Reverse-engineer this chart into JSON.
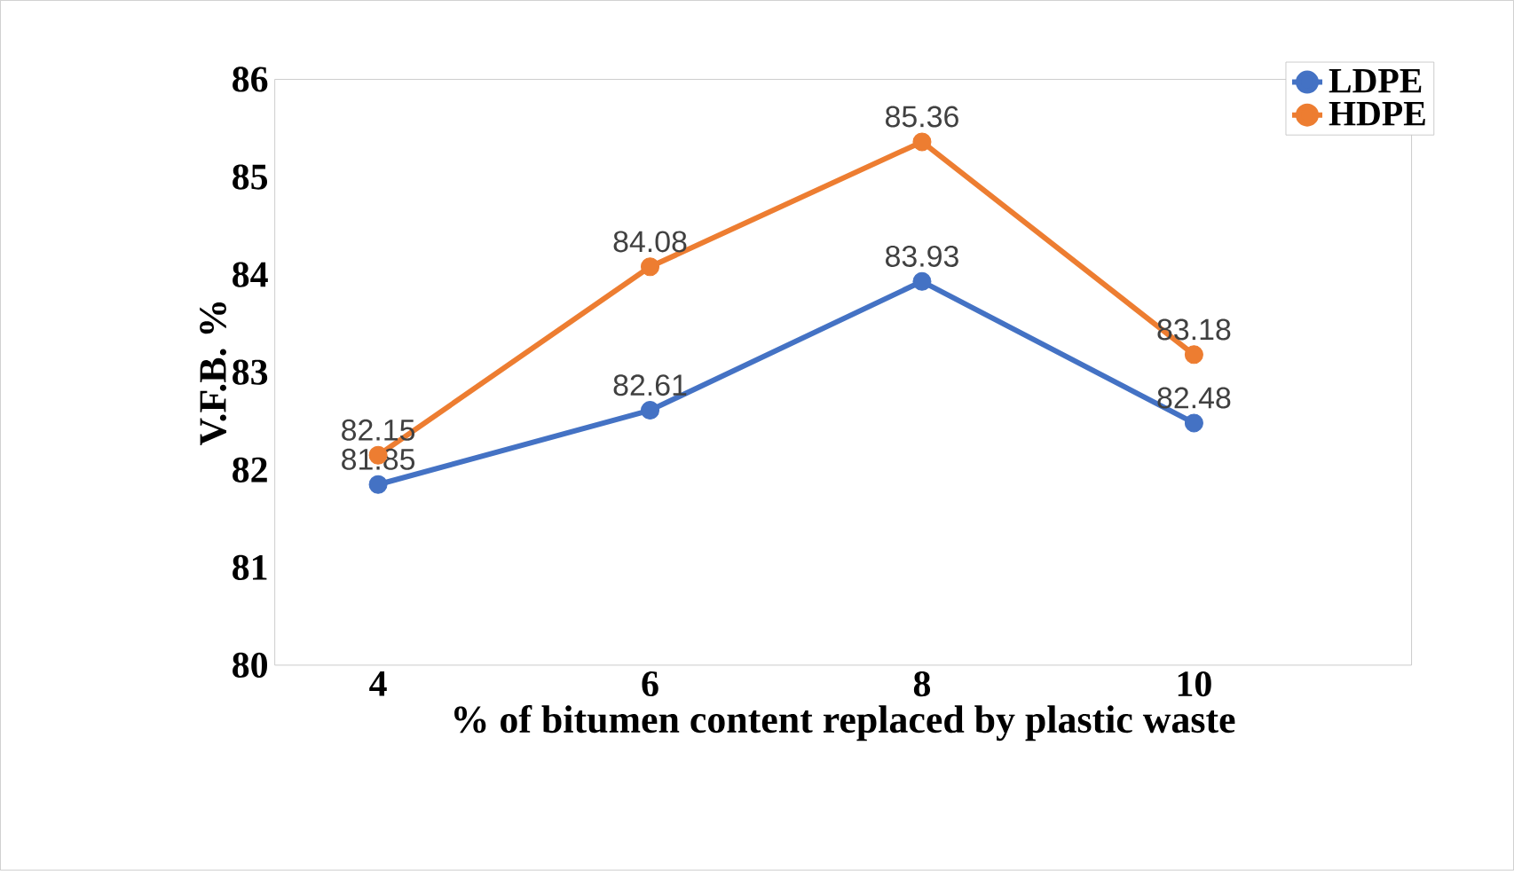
{
  "chart_data": {
    "type": "line",
    "xlabel": "% of bitumen content replaced by plastic waste",
    "ylabel": "V.F.B. %",
    "categories": [
      "4",
      "6",
      "8",
      "10"
    ],
    "series": [
      {
        "name": "LDPE",
        "color": "#4472c4",
        "values": [
          81.85,
          82.61,
          83.93,
          82.48
        ]
      },
      {
        "name": "HDPE",
        "color": "#ed7d31",
        "values": [
          82.15,
          84.08,
          85.36,
          83.18
        ]
      }
    ],
    "ylim": [
      80,
      86
    ],
    "yticks": [
      80,
      81,
      82,
      83,
      84,
      85,
      86
    ],
    "data_labels": true,
    "legend": "top right",
    "marker": "circle",
    "line_style": "solid"
  }
}
